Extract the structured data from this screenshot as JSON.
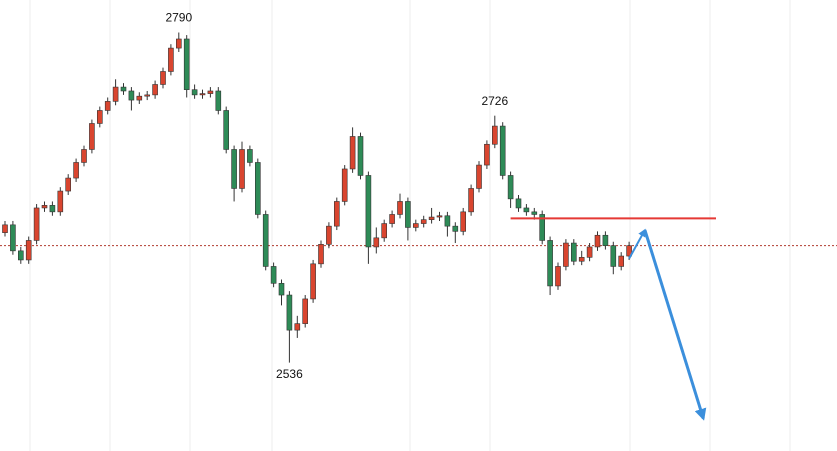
{
  "chart_data": {
    "type": "candlestick",
    "ylim": [
      2468,
      2815
    ],
    "up_color": "#d9452f",
    "down_color": "#2e8b57",
    "open": [
      2636,
      2642,
      2622,
      2615,
      2630,
      2655,
      2657,
      2652,
      2668,
      2678,
      2690,
      2700,
      2720,
      2730,
      2737,
      2748,
      2745,
      2738,
      2741,
      2742,
      2750,
      2760,
      2778,
      2785,
      2746,
      2742,
      2743,
      2745,
      2730,
      2700,
      2670,
      2700,
      2690,
      2650,
      2610,
      2597,
      2588,
      2561,
      2566,
      2585,
      2612,
      2627,
      2641,
      2660,
      2685,
      2710,
      2680,
      2625,
      2632,
      2643,
      2650,
      2660,
      2640,
      2643,
      2646,
      2648,
      2649,
      2641,
      2637,
      2652,
      2670,
      2688,
      2704,
      2718,
      2680,
      2662,
      2655,
      2652,
      2650,
      2630,
      2595,
      2610,
      2628,
      2614,
      2617,
      2625,
      2634,
      2626,
      2610,
      2618
    ],
    "high": [
      2645,
      2645,
      2625,
      2633,
      2658,
      2660,
      2660,
      2671,
      2681,
      2693,
      2703,
      2723,
      2733,
      2740,
      2754,
      2751,
      2748,
      2744,
      2745,
      2753,
      2763,
      2781,
      2790,
      2788,
      2750,
      2746,
      2748,
      2748,
      2733,
      2703,
      2706,
      2703,
      2693,
      2653,
      2613,
      2600,
      2591,
      2572,
      2588,
      2615,
      2630,
      2644,
      2663,
      2688,
      2717,
      2713,
      2683,
      2640,
      2646,
      2653,
      2666,
      2663,
      2646,
      2649,
      2655,
      2652,
      2652,
      2644,
      2655,
      2673,
      2691,
      2707,
      2726,
      2721,
      2683,
      2665,
      2658,
      2655,
      2653,
      2633,
      2613,
      2631,
      2631,
      2622,
      2628,
      2637,
      2637,
      2629,
      2621,
      2629
    ],
    "low": [
      2633,
      2619,
      2612,
      2612,
      2627,
      2652,
      2649,
      2649,
      2665,
      2675,
      2687,
      2697,
      2717,
      2727,
      2734,
      2742,
      2730,
      2735,
      2738,
      2739,
      2747,
      2757,
      2775,
      2740,
      2739,
      2739,
      2740,
      2727,
      2697,
      2660,
      2667,
      2687,
      2647,
      2607,
      2594,
      2580,
      2536,
      2555,
      2563,
      2582,
      2609,
      2624,
      2638,
      2657,
      2682,
      2677,
      2612,
      2620,
      2629,
      2640,
      2647,
      2630,
      2637,
      2640,
      2643,
      2645,
      2633,
      2628,
      2634,
      2649,
      2667,
      2685,
      2701,
      2677,
      2655,
      2652,
      2649,
      2646,
      2627,
      2588,
      2592,
      2607,
      2611,
      2611,
      2614,
      2622,
      2623,
      2604,
      2607,
      2615
    ],
    "close": [
      2642,
      2622,
      2615,
      2630,
      2655,
      2657,
      2652,
      2668,
      2678,
      2690,
      2700,
      2720,
      2730,
      2737,
      2748,
      2745,
      2738,
      2741,
      2742,
      2750,
      2760,
      2778,
      2785,
      2746,
      2742,
      2743,
      2745,
      2730,
      2700,
      2670,
      2700,
      2690,
      2650,
      2610,
      2597,
      2588,
      2561,
      2566,
      2585,
      2612,
      2627,
      2641,
      2660,
      2685,
      2710,
      2680,
      2625,
      2632,
      2643,
      2650,
      2660,
      2640,
      2643,
      2646,
      2648,
      2649,
      2641,
      2637,
      2652,
      2670,
      2688,
      2704,
      2718,
      2680,
      2662,
      2655,
      2652,
      2650,
      2630,
      2595,
      2610,
      2628,
      2614,
      2617,
      2625,
      2634,
      2626,
      2610,
      2618,
      2626
    ],
    "peak_labels": [
      2790,
      2726,
      2536
    ],
    "dotted_line": {
      "value": 2626,
      "color": "#b03a2e"
    },
    "level_line": {
      "value": 2647,
      "from": 64,
      "to": 90,
      "color": "#e53935"
    },
    "projection": {
      "x": [
        79,
        81,
        88.4
      ],
      "y": [
        2616,
        2638,
        2493
      ],
      "color": "#3b8fdc"
    }
  }
}
